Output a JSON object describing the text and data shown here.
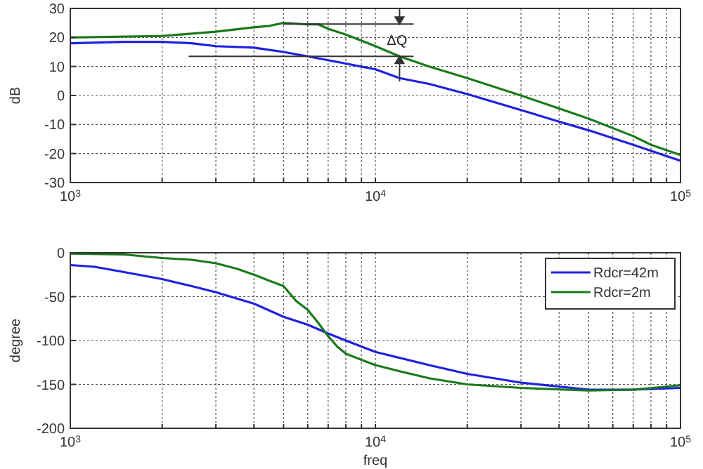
{
  "chart_data": [
    {
      "type": "line",
      "ylabel": "dB",
      "log": "x",
      "grid": true,
      "legend": false,
      "xlim": [
        1000,
        100000
      ],
      "ylim": [
        -30,
        30
      ],
      "yticks": [
        -30,
        -20,
        -10,
        0,
        10,
        20,
        30
      ],
      "xticks": [
        {
          "value": 1000,
          "label": "10$^{3}$"
        },
        {
          "value": 2000,
          "label": null
        },
        {
          "value": 3000,
          "label": null
        },
        {
          "value": 4000,
          "label": null
        },
        {
          "value": 5000,
          "label": null
        },
        {
          "value": 6000,
          "label": null
        },
        {
          "value": 7000,
          "label": null
        },
        {
          "value": 8000,
          "label": null
        },
        {
          "value": 9000,
          "label": null
        },
        {
          "value": 10000,
          "label": "10$^{4}$"
        },
        {
          "value": 20000,
          "label": null
        },
        {
          "value": 30000,
          "label": null
        },
        {
          "value": 40000,
          "label": null
        },
        {
          "value": 50000,
          "label": null
        },
        {
          "value": 60000,
          "label": null
        },
        {
          "value": 70000,
          "label": null
        },
        {
          "value": 80000,
          "label": null
        },
        {
          "value": 90000,
          "label": null
        },
        {
          "value": 100000,
          "label": "10$^{5}$"
        }
      ],
      "annotations": [
        {
          "text": "ΔQ",
          "x": 12000,
          "y": 13.5
        }
      ],
      "series": [
        {
          "color": "#2020e0",
          "x": [
            1000,
            1500,
            2000,
            2500,
            3000,
            4000,
            5000,
            6000,
            8000,
            10000,
            12000,
            15000,
            20000,
            30000,
            40000,
            50000,
            70000,
            100000
          ],
          "values": [
            18,
            18.5,
            18.5,
            18,
            17,
            16.5,
            15,
            13.5,
            11,
            9,
            6,
            4,
            0.5,
            -5,
            -9,
            -12,
            -17,
            -22.5
          ]
        },
        {
          "color": "#1a7a1a",
          "x": [
            1000,
            2000,
            3000,
            4000,
            4500,
            5000,
            6000,
            6500,
            7000,
            8000,
            10000,
            12000,
            15000,
            20000,
            30000,
            40000,
            50000,
            70000,
            80000,
            100000
          ],
          "values": [
            20,
            20.5,
            22,
            23.5,
            24,
            25,
            24.5,
            24.5,
            23,
            21,
            17,
            13.5,
            10,
            6,
            0,
            -4.5,
            -8,
            -14,
            -17,
            -20.5
          ]
        }
      ]
    },
    {
      "type": "line",
      "xlabel": "freq",
      "ylabel": "degree",
      "log": "x",
      "grid": true,
      "legend": "top right",
      "xlim": [
        1000,
        100000
      ],
      "ylim": [
        -200,
        0
      ],
      "yticks": [
        -200,
        -150,
        -100,
        -50,
        0
      ],
      "xticks": [
        {
          "value": 1000,
          "label": "10$^{3}$"
        },
        {
          "value": 2000,
          "label": null
        },
        {
          "value": 3000,
          "label": null
        },
        {
          "value": 4000,
          "label": null
        },
        {
          "value": 5000,
          "label": null
        },
        {
          "value": 6000,
          "label": null
        },
        {
          "value": 7000,
          "label": null
        },
        {
          "value": 8000,
          "label": null
        },
        {
          "value": 9000,
          "label": null
        },
        {
          "value": 10000,
          "label": "10$^{4}$"
        },
        {
          "value": 20000,
          "label": null
        },
        {
          "value": 30000,
          "label": null
        },
        {
          "value": 40000,
          "label": null
        },
        {
          "value": 50000,
          "label": null
        },
        {
          "value": 60000,
          "label": null
        },
        {
          "value": 70000,
          "label": null
        },
        {
          "value": 80000,
          "label": null
        },
        {
          "value": 90000,
          "label": null
        },
        {
          "value": 100000,
          "label": "10$^{5}$"
        }
      ],
      "series": [
        {
          "name": "Rdcr=42m",
          "color": "#2020e0",
          "x": [
            1000,
            1200,
            1500,
            2000,
            2500,
            3000,
            4000,
            5000,
            6000,
            7000,
            8000,
            10000,
            15000,
            20000,
            30000,
            50000,
            70000,
            100000
          ],
          "values": [
            -14,
            -16,
            -22,
            -30,
            -38,
            -45,
            -58,
            -73,
            -82,
            -92,
            -100,
            -113,
            -128,
            -138,
            -148,
            -156,
            -156,
            -154
          ]
        },
        {
          "name": "Rdcr=2m",
          "color": "#1a7a1a",
          "x": [
            1000,
            1500,
            2000,
            2500,
            3000,
            3500,
            4000,
            4500,
            5000,
            5500,
            6000,
            6500,
            7000,
            7500,
            8000,
            9000,
            10000,
            12000,
            15000,
            20000,
            30000,
            50000,
            70000,
            100000
          ],
          "values": [
            -1,
            -2,
            -6,
            -8,
            -12,
            -18,
            -25,
            -32,
            -38,
            -55,
            -65,
            -80,
            -95,
            -107,
            -115,
            -122,
            -128,
            -135,
            -143,
            -150,
            -154,
            -157,
            -156,
            -151
          ]
        }
      ]
    }
  ]
}
